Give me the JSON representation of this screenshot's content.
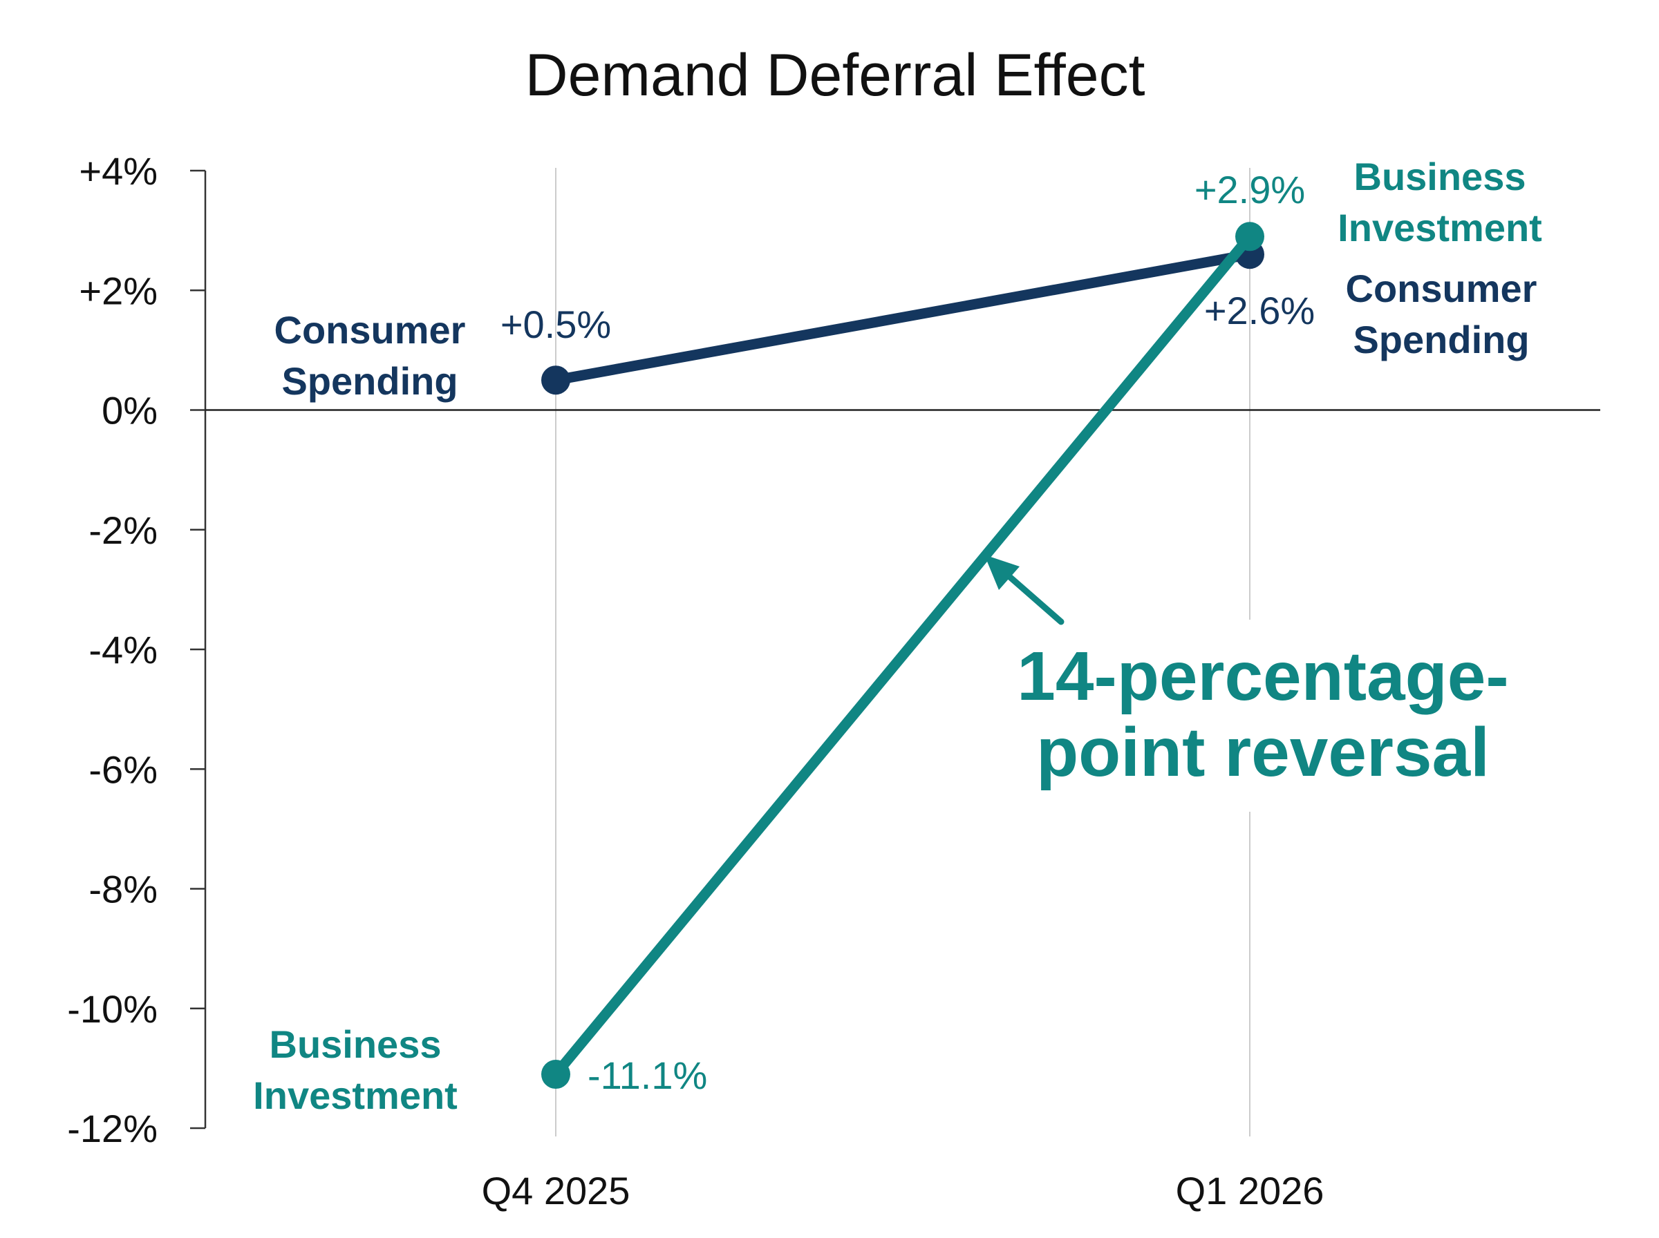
{
  "chart_data": {
    "type": "line",
    "title": "Demand Deferral Effect",
    "xlabel": "",
    "ylabel": "",
    "categories": [
      "Q4 2025",
      "Q1 2026"
    ],
    "ylim": [
      -12,
      4
    ],
    "yticks": [
      4,
      2,
      0,
      -2,
      -4,
      -6,
      -8,
      -10,
      -12
    ],
    "ytick_labels": [
      "+4%",
      "+2%",
      "0%",
      "-2%",
      "-4%",
      "-6%",
      "-8%",
      "-10%",
      "-12%"
    ],
    "grid": "vertical lines at categories",
    "legend": "none (direct labels)",
    "series": [
      {
        "name": "Consumer Spending",
        "values": [
          0.5,
          2.6
        ],
        "value_labels": [
          "+0.5%",
          "+2.6%"
        ],
        "color": "#14365e"
      },
      {
        "name": "Business Investment",
        "values": [
          -11.1,
          2.9
        ],
        "value_labels": [
          "-11.1%",
          "+2.9%"
        ],
        "color": "#108683"
      }
    ],
    "labels": {
      "consumer_q4_line1": "Consumer",
      "consumer_q4_line2": "Spending",
      "consumer_q1_line1": "Consumer",
      "consumer_q1_line2": "Spending",
      "business_q4_line1": "Business",
      "business_q4_line2": "Investment",
      "business_q1_line1": "Business",
      "business_q1_line2": "Investment"
    },
    "annotation": {
      "line1": "14-percentage-",
      "line2": "point reversal",
      "color": "#108683"
    }
  }
}
